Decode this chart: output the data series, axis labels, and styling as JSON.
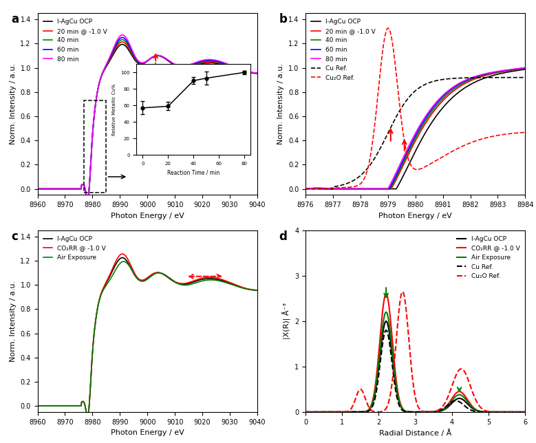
{
  "panel_a": {
    "xlabel": "Photon Energy / eV",
    "ylabel": "Norm. Intensity / a.u.",
    "xlim": [
      8960,
      9040
    ],
    "ylim": [
      -0.05,
      1.45
    ],
    "yticks": [
      0.0,
      0.2,
      0.4,
      0.6,
      0.8,
      1.0,
      1.2,
      1.4
    ],
    "legend": [
      "I-AgCu OCP",
      "20 min @ -1.0 V",
      "40 min",
      "60 min",
      "80 min"
    ],
    "colors": [
      "#000000",
      "#FF0000",
      "#008000",
      "#0000FF",
      "#FF00FF"
    ],
    "inset": {
      "xlabel": "Reaction Time / min",
      "ylabel": "Relative Metallic Cu%",
      "xlim": [
        -5,
        85
      ],
      "ylim": [
        0,
        110
      ],
      "yticks": [
        0,
        20,
        40,
        60,
        80,
        100
      ],
      "x": [
        0,
        20,
        40,
        50,
        80
      ],
      "y": [
        57,
        59,
        90,
        93,
        100
      ],
      "yerr": [
        8,
        5,
        4,
        8,
        2
      ]
    }
  },
  "panel_b": {
    "xlabel": "Photon Energy / eV",
    "ylabel": "Norm. Intensity / a.u.",
    "xlim": [
      8976,
      8984
    ],
    "ylim": [
      -0.05,
      1.45
    ],
    "yticks": [
      0.0,
      0.2,
      0.4,
      0.6,
      0.8,
      1.0,
      1.2,
      1.4
    ],
    "legend": [
      "I-AgCu OCP",
      "20 min @ -1.0 V",
      "40 min",
      "60 min",
      "80 min",
      "Cu Ref.",
      "Cu₂O Ref."
    ],
    "colors": [
      "#000000",
      "#FF0000",
      "#008000",
      "#0000FF",
      "#FF00FF",
      "#000000",
      "#FF0000"
    ]
  },
  "panel_c": {
    "xlabel": "Photon Energy / eV",
    "ylabel": "Norm. Intensity / a.u.",
    "xlim": [
      8960,
      9040
    ],
    "ylim": [
      -0.05,
      1.45
    ],
    "yticks": [
      0.0,
      0.2,
      0.4,
      0.6,
      0.8,
      1.0,
      1.2,
      1.4
    ],
    "legend": [
      "I-AgCu OCP",
      "CO₂RR @ -1.0 V",
      "Air Exposure"
    ],
    "colors": [
      "#000000",
      "#FF0000",
      "#008000"
    ]
  },
  "panel_d": {
    "xlabel": "Radial Distance / Å",
    "ylabel": "|X(R)| Å⁻³",
    "xlim": [
      0,
      6
    ],
    "ylim": [
      0,
      4
    ],
    "yticks": [
      0,
      1,
      2,
      3,
      4
    ],
    "legend": [
      "I-AgCu OCP",
      "CO₂RR @ -1.0 V",
      "Air Exposure",
      "Cu Ref.",
      "Cu₂O Ref."
    ],
    "colors": [
      "#000000",
      "#FF0000",
      "#008000",
      "#000000",
      "#FF0000"
    ]
  }
}
